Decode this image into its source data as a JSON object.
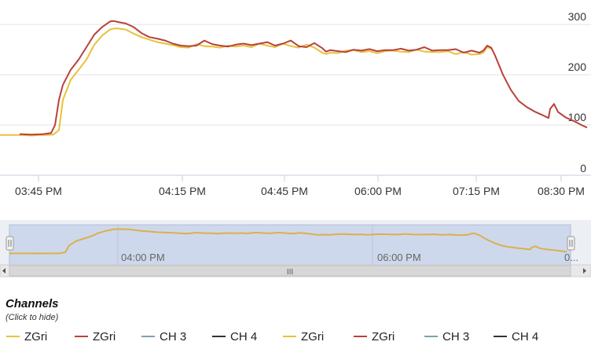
{
  "chart_data": {
    "type": "line",
    "y_ticks": [
      "0",
      "100",
      "200",
      "300"
    ],
    "ylim": [
      0,
      330
    ],
    "x_ticks": [
      "03:45 PM",
      "04:15 PM",
      "04:45 PM",
      "06:00 PM",
      "07:15 PM",
      "08:30 PM"
    ],
    "navigator_ticks": [
      "04:00 PM",
      "06:00 PM",
      "0..."
    ],
    "navigator_scroll_label": "III",
    "grid": "horizontal",
    "series": [
      {
        "name": "ZGri",
        "color": "#e8c23a",
        "x": [
          0,
          10,
          20,
          30,
          40,
          50,
          60,
          68,
          75,
          80,
          90,
          100,
          110,
          120,
          130,
          140,
          145,
          150,
          160,
          170,
          180,
          190,
          200,
          210,
          220,
          230,
          240,
          250,
          260,
          270,
          280,
          290,
          300,
          310,
          320,
          330,
          340,
          350,
          360,
          370,
          380,
          390,
          400,
          410,
          415,
          420,
          430,
          440,
          450,
          460,
          470,
          480,
          490,
          500,
          510,
          520,
          530,
          540,
          550,
          560,
          570,
          580,
          590,
          600,
          610,
          615,
          620,
          625
        ],
        "values": [
          80,
          80,
          80,
          80,
          79,
          80,
          80,
          81,
          90,
          150,
          190,
          210,
          230,
          260,
          278,
          290,
          292,
          292,
          290,
          282,
          275,
          270,
          265,
          262,
          259,
          255,
          254,
          261,
          257,
          256,
          254,
          258,
          256,
          258,
          255,
          262,
          258,
          255,
          262,
          257,
          254,
          260,
          254,
          244,
          241,
          244,
          243,
          248,
          249,
          245,
          247,
          243,
          247,
          248,
          246,
          245,
          250,
          246,
          245,
          245,
          247,
          241,
          245,
          240,
          241,
          244,
          255,
          252
        ]
      },
      {
        "name": "ZGri",
        "color": "#b9413a",
        "x": [
          25,
          40,
          55,
          65,
          70,
          75,
          80,
          90,
          100,
          110,
          120,
          130,
          140,
          145,
          150,
          160,
          170,
          180,
          190,
          200,
          210,
          220,
          230,
          240,
          250,
          260,
          270,
          280,
          290,
          300,
          310,
          320,
          330,
          340,
          350,
          360,
          370,
          380,
          390,
          400,
          410,
          415,
          420,
          430,
          440,
          450,
          460,
          470,
          480,
          490,
          500,
          510,
          520,
          530,
          540,
          550,
          560,
          570,
          580,
          590,
          600,
          610,
          615,
          620,
          625,
          630,
          640,
          650,
          660,
          670,
          680,
          690,
          698,
          700,
          705,
          710,
          720,
          730,
          740,
          747
        ],
        "values": [
          82,
          81,
          82,
          84,
          100,
          150,
          180,
          210,
          230,
          255,
          280,
          295,
          306,
          307,
          305,
          302,
          295,
          283,
          275,
          272,
          268,
          262,
          258,
          257,
          258,
          268,
          261,
          258,
          256,
          260,
          262,
          259,
          262,
          265,
          258,
          262,
          268,
          257,
          255,
          263,
          253,
          246,
          249,
          247,
          245,
          250,
          248,
          251,
          247,
          249,
          249,
          252,
          248,
          250,
          255,
          248,
          249,
          249,
          251,
          244,
          248,
          244,
          248,
          258,
          254,
          238,
          200,
          170,
          148,
          136,
          127,
          120,
          114,
          132,
          142,
          126,
          115,
          108,
          100,
          95
        ]
      },
      {
        "name": "CH 3",
        "color": "#7ea1ab",
        "x": [],
        "values": []
      },
      {
        "name": "CH 4",
        "color": "#333333",
        "x": [],
        "values": []
      },
      {
        "name": "ZGri",
        "color": "#e8c23a",
        "x": [],
        "values": []
      },
      {
        "name": "ZGri",
        "color": "#b9413a",
        "x": [],
        "values": []
      },
      {
        "name": "CH 3",
        "color": "#7ea1ab",
        "x": [],
        "values": []
      },
      {
        "name": "CH 4",
        "color": "#333333",
        "x": [],
        "values": []
      }
    ]
  },
  "legend": {
    "title": "Channels",
    "hint": "(Click to hide)"
  }
}
